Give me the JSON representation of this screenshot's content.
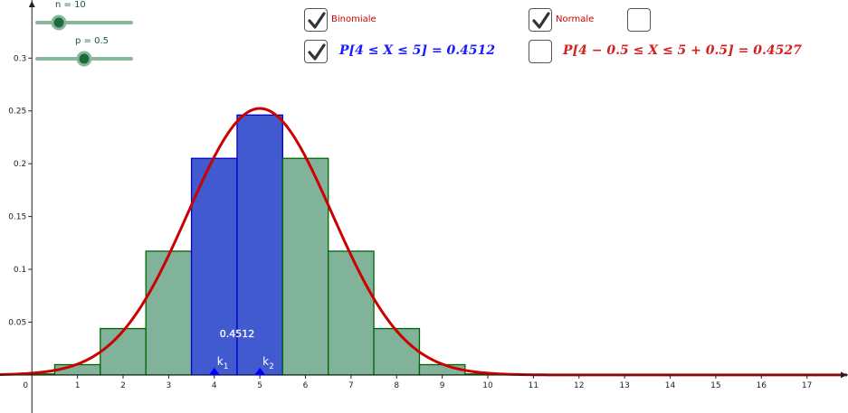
{
  "sliders": {
    "n": {
      "label": "n = 10",
      "value": 10,
      "min": 1,
      "max": 40
    },
    "p": {
      "label": "p = 0.5",
      "value": 0.5,
      "min": 0,
      "max": 1
    }
  },
  "checkboxes": {
    "binomiale": {
      "label": "Binomiale",
      "checked": true
    },
    "normale": {
      "label": "Normale",
      "checked": true
    },
    "extra": {
      "label": "",
      "checked": false
    },
    "prob_binomiale": {
      "checked": true
    },
    "prob_normale": {
      "checked": false
    }
  },
  "formulas": {
    "binomiale": "P[4 ≤ X ≤ 5] = 0.4512",
    "normale": "P[4 − 0.5 ≤ X ≤ 5 + 0.5] = 0.4527"
  },
  "points": {
    "k1": "k1",
    "k2": "k2"
  },
  "colors": {
    "bar_fill": "#80b39a",
    "bar_stroke": "#006400",
    "highlight_fill": "#415ad0",
    "highlight_stroke": "#0000cc",
    "curve": "#cc0000",
    "binomiale_text": "#1a1aff",
    "normale_text": "#d42020",
    "label_red": "#cc0000"
  },
  "chart_data": {
    "type": "bar",
    "x": [
      0,
      1,
      2,
      3,
      4,
      5,
      6,
      7,
      8,
      9,
      10
    ],
    "values": [
      0.00098,
      0.00977,
      0.04395,
      0.11719,
      0.20508,
      0.24609,
      0.20508,
      0.11719,
      0.04395,
      0.00977,
      0.00098
    ],
    "highlight": [
      4,
      5
    ],
    "highlight_label": "0.4512",
    "curve": {
      "type": "normal",
      "mean": 5,
      "sd": 1.5811
    },
    "x_ticks": [
      0,
      1,
      2,
      3,
      4,
      5,
      6,
      7,
      8,
      9,
      10,
      11,
      12,
      13,
      14,
      15,
      16,
      17
    ],
    "y_ticks": [
      0.05,
      0.1,
      0.15,
      0.2,
      0.25,
      0.3
    ],
    "xlim": [
      -0.7,
      17.9
    ],
    "ylim": [
      -0.036,
      0.355
    ]
  }
}
